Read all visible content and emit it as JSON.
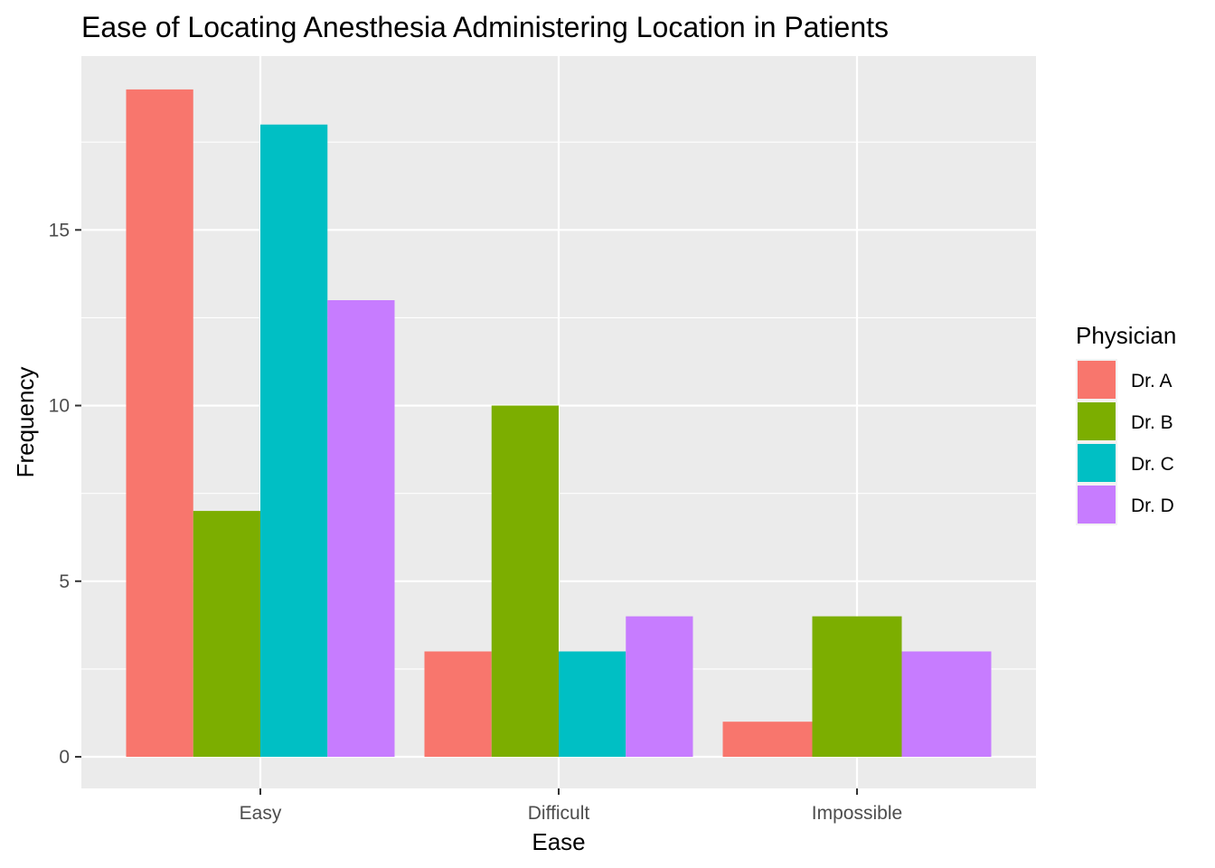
{
  "chart_data": {
    "type": "bar",
    "title": "Ease of Locating Anesthesia Administering Location in Patients",
    "xlabel": "Ease",
    "ylabel": "Frequency",
    "categories": [
      "Easy",
      "Difficult",
      "Impossible"
    ],
    "series": [
      {
        "name": "Dr. A",
        "color": "#F8766D",
        "values": [
          19,
          3,
          1
        ]
      },
      {
        "name": "Dr. B",
        "color": "#7CAE00",
        "values": [
          7,
          10,
          4
        ]
      },
      {
        "name": "Dr. C",
        "color": "#00BFC4",
        "values": [
          18,
          3,
          null
        ]
      },
      {
        "name": "Dr. D",
        "color": "#C77CFF",
        "values": [
          13,
          4,
          3
        ]
      }
    ],
    "ylim": [
      -0.9,
      19.95
    ],
    "yticks": [
      0,
      5,
      10,
      15
    ],
    "yticks_minor": [
      2.5,
      7.5,
      12.5,
      17.5
    ],
    "grid": true,
    "panel_background": "#EBEBEB",
    "legend": {
      "title": "Physician",
      "position": "right"
    }
  }
}
